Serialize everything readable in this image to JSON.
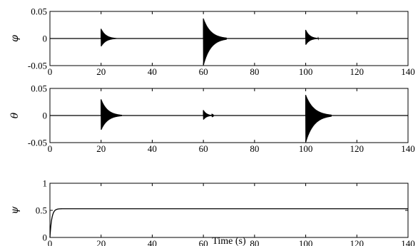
{
  "figure": {
    "xlabel": "Time (s)"
  },
  "chart_data": [
    {
      "type": "line",
      "ylabel": "φ",
      "xlim": [
        0,
        140
      ],
      "ylim": [
        -0.05,
        0.05
      ],
      "xticks": [
        "0",
        "20",
        "40",
        "60",
        "80",
        "100",
        "120",
        "140"
      ],
      "yticks": [
        "-0.05",
        "0",
        "0.05"
      ],
      "baseline": 0,
      "transients": [
        {
          "t": 20,
          "amp_pos": 0.018,
          "amp_neg": -0.015,
          "duration": 6
        },
        {
          "t": 60,
          "amp_pos": 0.037,
          "amp_neg": -0.05,
          "duration": 9
        },
        {
          "t": 100,
          "amp_pos": 0.016,
          "amp_neg": -0.012,
          "duration": 5
        }
      ]
    },
    {
      "type": "line",
      "ylabel": "θ",
      "xlim": [
        0,
        140
      ],
      "ylim": [
        -0.05,
        0.05
      ],
      "xticks": [
        "0",
        "20",
        "40",
        "60",
        "80",
        "100",
        "120",
        "140"
      ],
      "yticks": [
        "-0.05",
        "0",
        "0.05"
      ],
      "baseline": 0,
      "transients": [
        {
          "t": 20,
          "amp_pos": 0.03,
          "amp_neg": -0.027,
          "duration": 8
        },
        {
          "t": 60,
          "amp_pos": 0.01,
          "amp_neg": -0.008,
          "duration": 4
        },
        {
          "t": 100,
          "amp_pos": 0.038,
          "amp_neg": -0.05,
          "duration": 10
        }
      ]
    },
    {
      "type": "line",
      "ylabel": "ψ",
      "xlim": [
        0,
        140
      ],
      "ylim": [
        0,
        1
      ],
      "xticks": [
        "0",
        "20",
        "40",
        "60",
        "80",
        "100",
        "120",
        "140"
      ],
      "yticks": [
        "0",
        "0.5",
        "1"
      ],
      "step": {
        "start": 0,
        "final": 0.53,
        "time_constant": 0.7
      }
    }
  ]
}
